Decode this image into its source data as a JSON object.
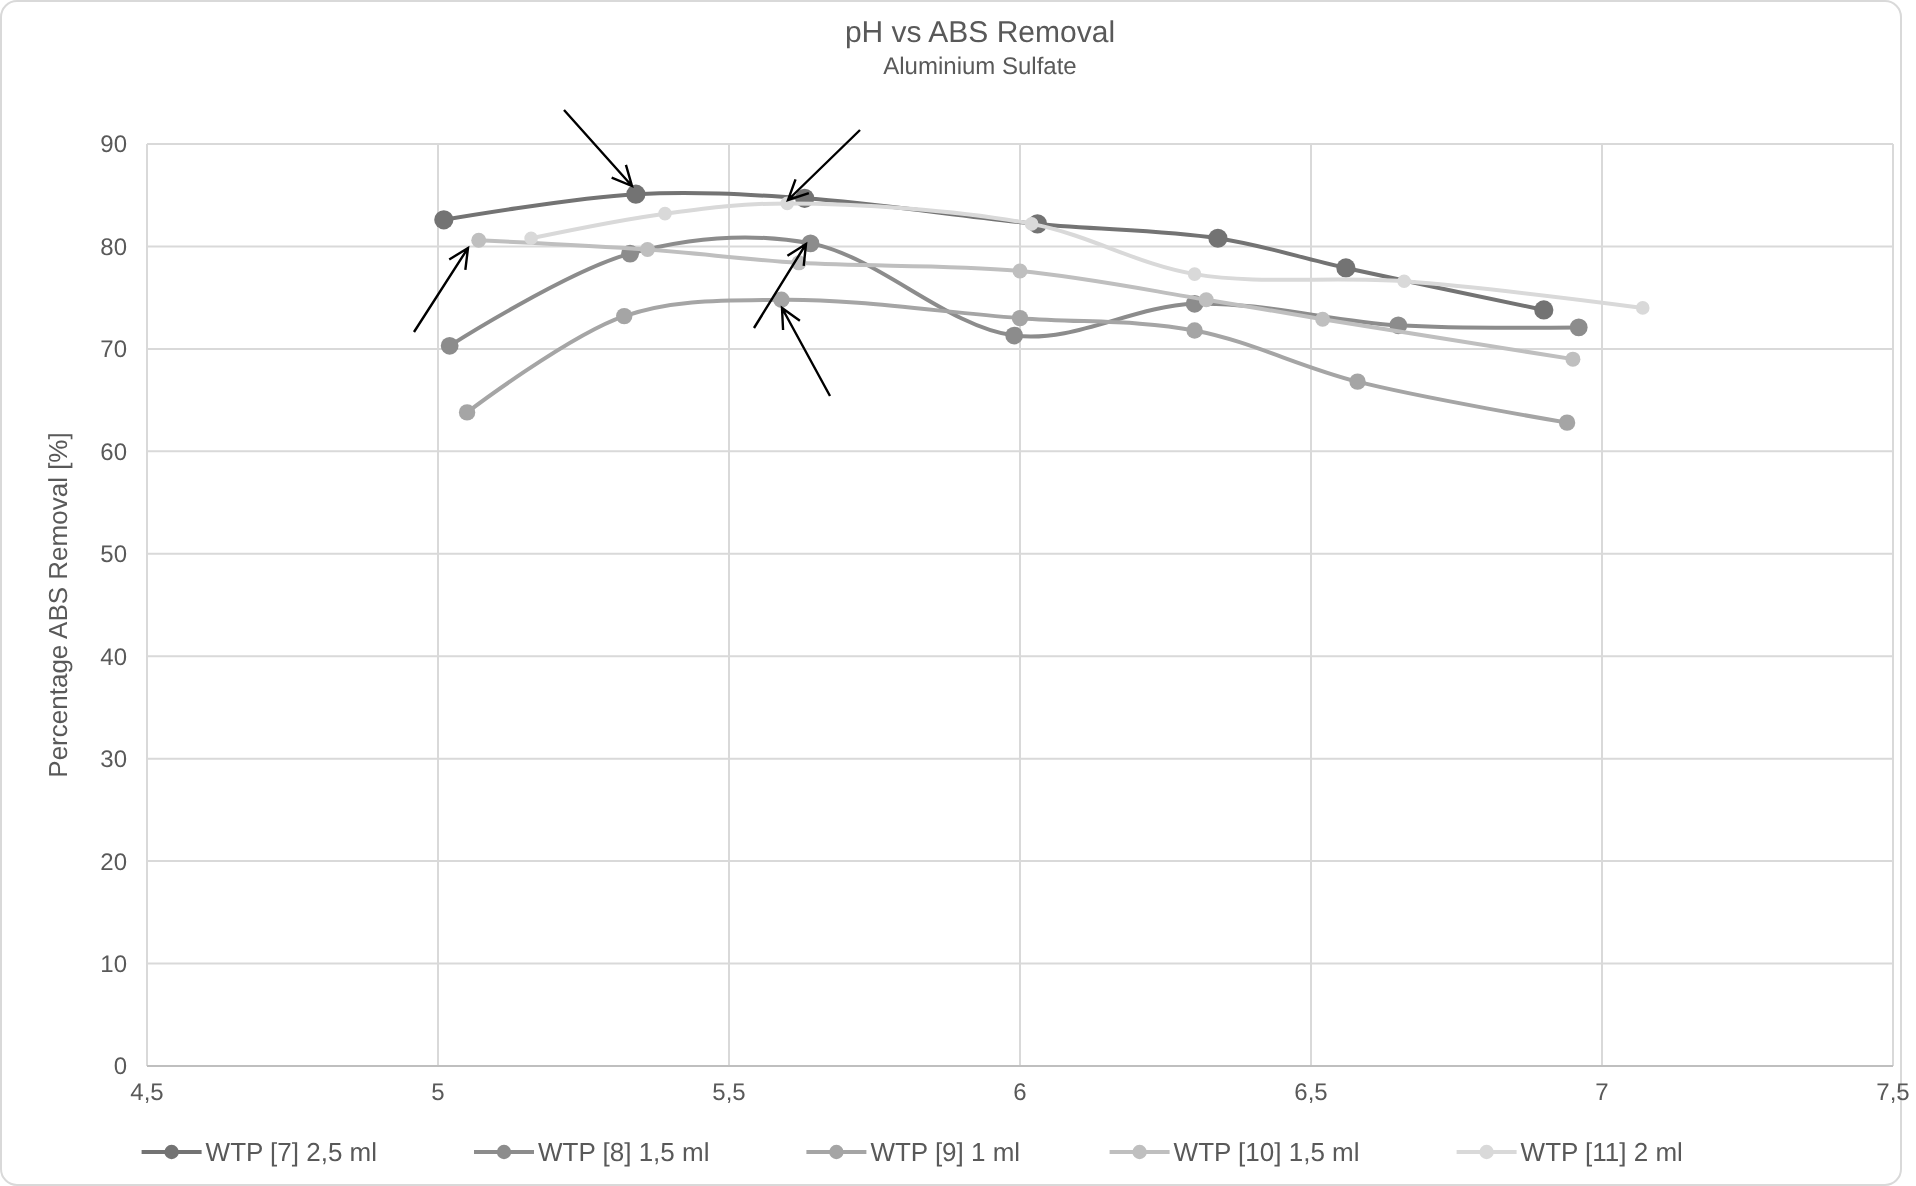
{
  "chart_data": {
    "type": "line",
    "title": "pH vs ABS Removal",
    "subtitle": "Aluminium Sulfate",
    "ylabel": "Percentage ABS Removal  [%]",
    "xlim": [
      4.5,
      7.5
    ],
    "xticks": [
      {
        "value": 4.5,
        "label": "4,5"
      },
      5,
      {
        "value": 5.5,
        "label": "5,5"
      },
      6,
      {
        "value": 6.5,
        "label": "6,5"
      },
      7,
      {
        "value": 7.5,
        "label": "7,5"
      }
    ],
    "ylim": [
      0,
      90
    ],
    "yticks": [
      0,
      10,
      20,
      30,
      40,
      50,
      60,
      70,
      80,
      90
    ],
    "grid": true,
    "legend": "bottom",
    "marker": "circle",
    "line_style": "solid",
    "series": [
      {
        "name": "WTP [7] 2,5 ml",
        "color": "#737373",
        "x": [
          5.01,
          5.34,
          5.63,
          6.03,
          6.34,
          6.56,
          6.9
        ],
        "values": [
          82.6,
          85.1,
          84.7,
          82.2,
          80.8,
          77.9,
          73.8
        ]
      },
      {
        "name": "WTP [8] 1,5 ml",
        "color": "#8c8c8c",
        "x": [
          5.02,
          5.33,
          5.64,
          5.99,
          6.3,
          6.65,
          6.96
        ],
        "values": [
          70.3,
          79.3,
          80.3,
          71.3,
          74.4,
          72.3,
          72.1
        ]
      },
      {
        "name": "WTP [9] 1 ml",
        "color": "#a5a5a5",
        "x": [
          5.05,
          5.32,
          5.59,
          6.0,
          6.3,
          6.58,
          6.94
        ],
        "values": [
          63.8,
          73.2,
          74.8,
          73.0,
          71.8,
          66.8,
          62.8
        ]
      },
      {
        "name": "WTP [10] 1,5 ml",
        "color": "#bfbfbf",
        "x": [
          5.07,
          5.36,
          5.62,
          6.0,
          6.32,
          6.52,
          6.95
        ],
        "values": [
          80.6,
          79.7,
          78.4,
          77.6,
          74.8,
          72.9,
          69.0
        ]
      },
      {
        "name": "WTP [11] 2 ml",
        "color": "#d9d9d9",
        "x": [
          5.16,
          5.39,
          5.6,
          6.02,
          6.3,
          6.66,
          7.07
        ],
        "values": [
          80.8,
          83.2,
          84.2,
          82.2,
          77.3,
          76.6,
          74.0
        ]
      }
    ]
  }
}
